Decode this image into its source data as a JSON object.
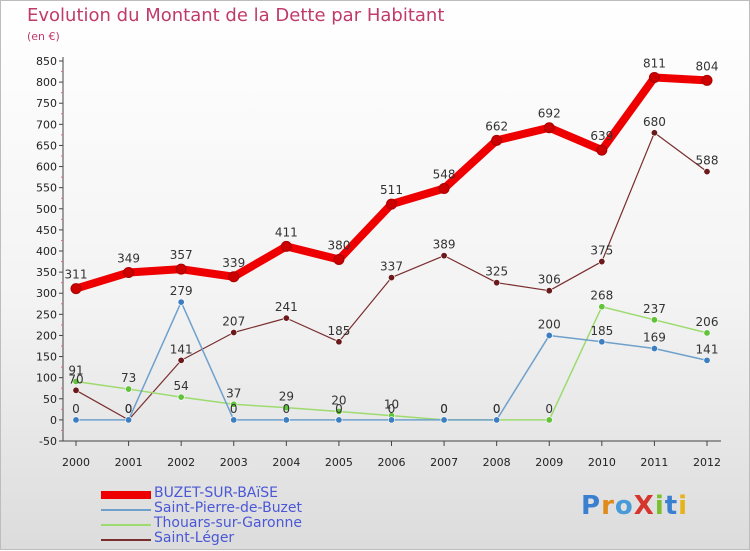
{
  "title": "Evolution du Montant de la Dette par Habitant",
  "unit": "(en €)",
  "brand": "ProXiti",
  "chart_data": {
    "type": "line",
    "title": "Evolution du Montant de la Dette par Habitant",
    "subtitle": "(en €)",
    "x": [
      "2000",
      "2001",
      "2002",
      "2003",
      "2004",
      "2005",
      "2006",
      "2007",
      "2008",
      "2009",
      "2010",
      "2011",
      "2012"
    ],
    "ylim": [
      -50,
      850
    ],
    "yticks": [
      -50,
      0,
      50,
      100,
      150,
      200,
      250,
      300,
      350,
      400,
      450,
      500,
      550,
      600,
      650,
      700,
      750,
      800,
      850
    ],
    "grid": false,
    "legend_position": "bottom-left",
    "series": [
      {
        "name": "BUZET-SUR-BAïSE",
        "color": "#ee0000",
        "point_color": "#cc0000",
        "width": 8,
        "values": [
          311,
          349,
          357,
          339,
          411,
          380,
          511,
          548,
          662,
          692,
          639,
          811,
          804
        ],
        "labels": [
          "311",
          "349",
          "357",
          "339",
          "411",
          "380",
          "511",
          "548",
          "662",
          "692",
          "639",
          "811",
          "804"
        ]
      },
      {
        "name": "Saint-Pierre-de-Buzet",
        "color": "#6fa0cc",
        "point_color": "#3d7ec0",
        "width": 1.5,
        "values": [
          0,
          0,
          279,
          0,
          0,
          0,
          0,
          0,
          0,
          200,
          185,
          169,
          141
        ],
        "labels": [
          "0",
          "0",
          "279",
          "0",
          "0",
          "0",
          "0",
          "0",
          "0",
          "200",
          "185",
          "169",
          "141"
        ]
      },
      {
        "name": "Thouars-sur-Garonne",
        "color": "#9ddb6e",
        "point_color": "#62c23c",
        "width": 1.5,
        "values": [
          91,
          73,
          54,
          37,
          29,
          20,
          10,
          0,
          0,
          0,
          268,
          237,
          206
        ],
        "labels": [
          "91",
          "73",
          "54",
          "37",
          "29",
          "20",
          "10",
          "0",
          "0",
          "0",
          "268",
          "237",
          "206"
        ]
      },
      {
        "name": "Saint-Léger",
        "color": "#7a2e2e",
        "point_color": "#6a1a1a",
        "width": 1.2,
        "values": [
          70,
          0,
          141,
          207,
          241,
          185,
          337,
          389,
          325,
          306,
          375,
          680,
          588
        ],
        "labels": [
          "70",
          "0",
          "141",
          "207",
          "241",
          "185",
          "337",
          "389",
          "325",
          "306",
          "375",
          "680",
          "588"
        ]
      }
    ]
  }
}
